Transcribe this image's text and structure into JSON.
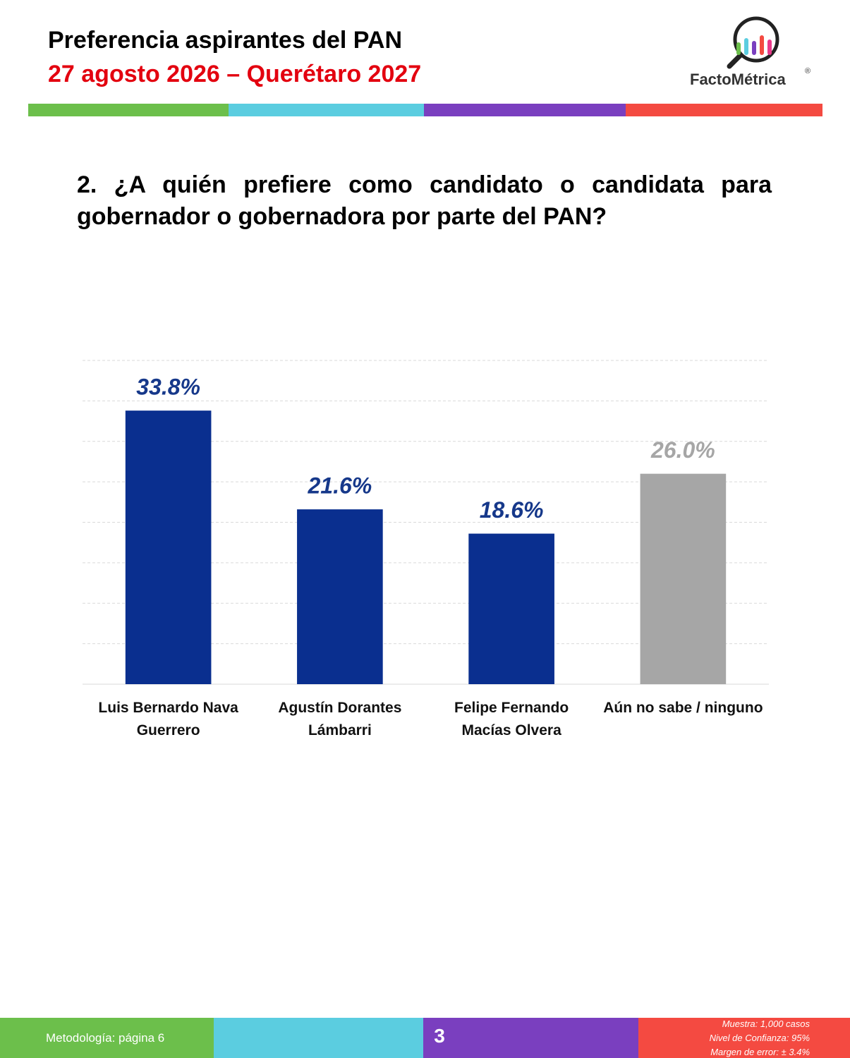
{
  "header": {
    "title": "Preferencia aspirantes del PAN",
    "subtitle": "27 agosto 2026 – Querétaro 2027",
    "brand": "FactoMétrica",
    "registered": "®"
  },
  "question": "2. ¿A quién prefiere como candidato o candidata para gobernador o gobernadora por parte del PAN?",
  "chart_data": {
    "type": "bar",
    "categories": [
      "Luis Bernardo Nava Guerrero",
      "Agustín Dorantes Lámbarri",
      "Felipe Fernando Macías Olvera",
      "Aún no sabe / ninguno"
    ],
    "values": [
      33.8,
      21.6,
      18.6,
      26.0
    ],
    "value_labels": [
      "33.8%",
      "21.6%",
      "18.6%",
      "26.0%"
    ],
    "colors": [
      "#0a2f8f",
      "#0a2f8f",
      "#0a2f8f",
      "#a6a6a6"
    ],
    "label_colors": [
      "#16388a",
      "#16388a",
      "#16388a",
      "#a6a6a6"
    ],
    "ylim": [
      0,
      40
    ],
    "yticks": [
      0,
      5,
      10,
      15,
      20,
      25,
      30,
      35,
      40
    ],
    "grid": true
  },
  "footer": {
    "methodology": "Metodología: página  6",
    "page": "3",
    "notes": [
      "Muestra:  1,000 casos",
      "Nivel de Confianza: 95%",
      "Margen de error: ± 3.4%"
    ]
  }
}
